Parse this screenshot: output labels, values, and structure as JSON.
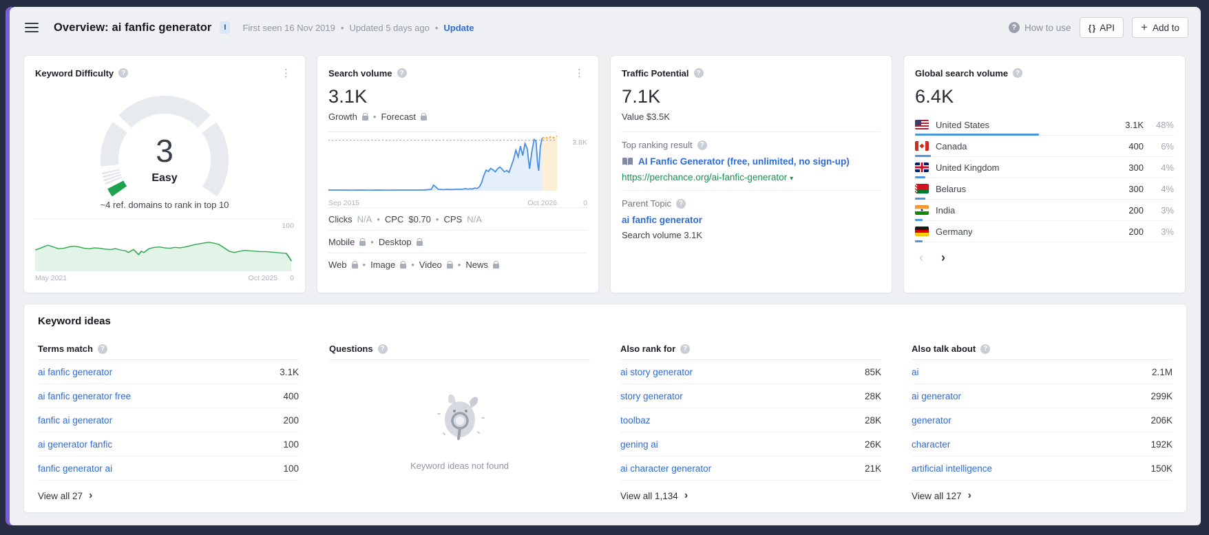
{
  "sep": "•",
  "topbar": {
    "title": "Overview: ai fanfic generator",
    "title_badge": "I",
    "first_seen": "First seen 16 Nov 2019",
    "updated": "Updated 5 days ago",
    "update_link": "Update",
    "how_to_use": "How to use",
    "api_label": "API",
    "add_to_label": "Add to"
  },
  "cards": {
    "kd": {
      "title": "Keyword Difficulty",
      "score": "3",
      "level": "Easy",
      "hint": "~4 ref. domains to rank in top 10",
      "history_axis": {
        "y_top": "100",
        "y_zero": "0",
        "x_start": "May 2021",
        "x_end": "Oct 2025"
      }
    },
    "search_volume": {
      "title": "Search volume",
      "value": "3.1K",
      "growth_label": "Growth",
      "forecast_label": "Forecast",
      "axis": {
        "y_top": "3.8K",
        "y_zero": "0",
        "x_start": "Sep 2015",
        "x_end": "Oct 2026"
      },
      "clicks_label": "Clicks",
      "clicks_value": "N/A",
      "cpc_label": "CPC",
      "cpc_value": "$0.70",
      "cps_label": "CPS",
      "cps_value": "N/A",
      "mobile_label": "Mobile",
      "desktop_label": "Desktop",
      "web_label": "Web",
      "image_label": "Image",
      "video_label": "Video",
      "news_label": "News"
    },
    "traffic_potential": {
      "title": "Traffic Potential",
      "value": "7.1K",
      "value_line": "Value $3.5K",
      "top_ranking_label": "Top ranking result",
      "top_result_title": "AI Fanfic Generator (free, unlimited, no sign-up)",
      "top_result_url": "https://perchance.org/ai-fanfic-generator",
      "parent_topic_label": "Parent Topic",
      "parent_topic": "ai fanfic generator",
      "parent_topic_volume": "Search volume 3.1K"
    },
    "global": {
      "title": "Global search volume",
      "value": "6.4K",
      "countries": [
        {
          "name": "United States",
          "flag": "us",
          "volume": "3.1K",
          "pct": "48%",
          "bar": 48
        },
        {
          "name": "Canada",
          "flag": "ca",
          "volume": "400",
          "pct": "6%",
          "bar": 6
        },
        {
          "name": "United Kingdom",
          "flag": "gb",
          "volume": "300",
          "pct": "4%",
          "bar": 4
        },
        {
          "name": "Belarus",
          "flag": "by",
          "volume": "300",
          "pct": "4%",
          "bar": 4
        },
        {
          "name": "India",
          "flag": "in",
          "volume": "200",
          "pct": "3%",
          "bar": 3
        },
        {
          "name": "Germany",
          "flag": "de",
          "volume": "200",
          "pct": "3%",
          "bar": 3
        }
      ],
      "pager_prev": "‹",
      "pager_next": "›"
    }
  },
  "keyword_ideas": {
    "title": "Keyword ideas",
    "terms_match": {
      "header": "Terms match",
      "rows": [
        {
          "kw": "ai fanfic generator",
          "vol": "3.1K"
        },
        {
          "kw": "ai fanfic generator free",
          "vol": "400"
        },
        {
          "kw": "fanfic ai generator",
          "vol": "200"
        },
        {
          "kw": "ai generator fanfic",
          "vol": "100"
        },
        {
          "kw": "fanfic generator ai",
          "vol": "100"
        }
      ],
      "view_all": "View all 27"
    },
    "questions": {
      "header": "Questions",
      "empty_text": "Keyword ideas not found"
    },
    "also_rank": {
      "header": "Also rank for",
      "rows": [
        {
          "kw": "ai story generator",
          "vol": "85K"
        },
        {
          "kw": "story generator",
          "vol": "28K"
        },
        {
          "kw": "toolbaz",
          "vol": "28K"
        },
        {
          "kw": "gening ai",
          "vol": "26K"
        },
        {
          "kw": "ai character generator",
          "vol": "21K"
        }
      ],
      "view_all": "View all 1,134"
    },
    "also_talk": {
      "header": "Also talk about",
      "rows": [
        {
          "kw": "ai",
          "vol": "2.1M"
        },
        {
          "kw": "ai generator",
          "vol": "299K"
        },
        {
          "kw": "generator",
          "vol": "206K"
        },
        {
          "kw": "character",
          "vol": "192K"
        },
        {
          "kw": "artificial intelligence",
          "vol": "150K"
        }
      ],
      "view_all": "View all 127"
    }
  },
  "chart_data": [
    {
      "id": "kd-gauge",
      "type": "gauge",
      "title": "Keyword Difficulty",
      "value": 3,
      "max": 100,
      "label": "Easy",
      "accent_color": "#1ea24d",
      "track_color": "#e7eaee"
    },
    {
      "id": "kd-history",
      "type": "area",
      "color": "#34a853",
      "fill_opacity": 0.14,
      "ymax": 100,
      "x_range": [
        "May 2021",
        "Oct 2025"
      ],
      "y_axis": [
        "0",
        "100"
      ],
      "points": [
        [
          0,
          50
        ],
        [
          2,
          54
        ],
        [
          4,
          59
        ],
        [
          5,
          61
        ],
        [
          7,
          57
        ],
        [
          9,
          53
        ],
        [
          11,
          54
        ],
        [
          13,
          57
        ],
        [
          15,
          59
        ],
        [
          17,
          57
        ],
        [
          19,
          54
        ],
        [
          21,
          53
        ],
        [
          23,
          55
        ],
        [
          25,
          54
        ],
        [
          27,
          52
        ],
        [
          29,
          51
        ],
        [
          31,
          53
        ],
        [
          33,
          50
        ],
        [
          35,
          48
        ],
        [
          36,
          44
        ],
        [
          38,
          51
        ],
        [
          40,
          39
        ],
        [
          41,
          47
        ],
        [
          42,
          44
        ],
        [
          44,
          53
        ],
        [
          46,
          56
        ],
        [
          48,
          57
        ],
        [
          50,
          55
        ],
        [
          52,
          54
        ],
        [
          54,
          56
        ],
        [
          56,
          55
        ],
        [
          58,
          57
        ],
        [
          60,
          60
        ],
        [
          62,
          63
        ],
        [
          64,
          65
        ],
        [
          66,
          67
        ],
        [
          67,
          68
        ],
        [
          69,
          66
        ],
        [
          71,
          63
        ],
        [
          73,
          55
        ],
        [
          75,
          47
        ],
        [
          77,
          44
        ],
        [
          79,
          47
        ],
        [
          81,
          49
        ],
        [
          83,
          48
        ],
        [
          85,
          47
        ],
        [
          87,
          46
        ],
        [
          89,
          46
        ],
        [
          91,
          45
        ],
        [
          93,
          44
        ],
        [
          95,
          43
        ],
        [
          97,
          42
        ],
        [
          98,
          34
        ],
        [
          99,
          24
        ]
      ]
    },
    {
      "id": "search-volume",
      "type": "line",
      "ymax": 4.4,
      "gridline": 3.8,
      "x_range": [
        "Sep 2015",
        "Oct 2026"
      ],
      "y_axis": [
        "0",
        "3.8K"
      ],
      "series": [
        {
          "name": "History",
          "color": "#4a90e2",
          "fill_opacity": 0.14,
          "points": [
            [
              0,
              0.05
            ],
            [
              5,
              0.05
            ],
            [
              10,
              0.04
            ],
            [
              14,
              0.05
            ],
            [
              18,
              0.04
            ],
            [
              22,
              0.05
            ],
            [
              26,
              0.04
            ],
            [
              30,
              0.05
            ],
            [
              34,
              0.05
            ],
            [
              38,
              0.05
            ],
            [
              42,
              0.06
            ],
            [
              45,
              0.1
            ],
            [
              46,
              0.42
            ],
            [
              47,
              0.28
            ],
            [
              48,
              0.12
            ],
            [
              50,
              0.08
            ],
            [
              52,
              0.1
            ],
            [
              54,
              0.09
            ],
            [
              56,
              0.12
            ],
            [
              58,
              0.1
            ],
            [
              60,
              0.16
            ],
            [
              61,
              0.12
            ],
            [
              62,
              0.15
            ],
            [
              63,
              0.13
            ],
            [
              64,
              0.2
            ],
            [
              65,
              0.17
            ],
            [
              66,
              0.28
            ],
            [
              67,
              0.6
            ],
            [
              68,
              1.15
            ],
            [
              69,
              1.55
            ],
            [
              70,
              1.45
            ],
            [
              71,
              1.68
            ],
            [
              72,
              1.58
            ],
            [
              73,
              1.42
            ],
            [
              74,
              1.66
            ],
            [
              75,
              1.78
            ],
            [
              76,
              1.62
            ],
            [
              77,
              1.42
            ],
            [
              78,
              1.52
            ],
            [
              79,
              1.38
            ],
            [
              80,
              1.85
            ],
            [
              81,
              2.35
            ],
            [
              82,
              3.05
            ],
            [
              83,
              2.55
            ],
            [
              84,
              3.35
            ],
            [
              85,
              2.65
            ],
            [
              86,
              3.55
            ],
            [
              87,
              3.15
            ],
            [
              88,
              1.65
            ],
            [
              89,
              2.95
            ],
            [
              90,
              3.85
            ],
            [
              90.8,
              3.75
            ],
            [
              91.5,
              2.1
            ],
            [
              92,
              1.5
            ],
            [
              92.7,
              3.3
            ],
            [
              93.5,
              3.95
            ]
          ]
        },
        {
          "name": "Forecast",
          "color": "#f5a623",
          "fill_opacity": 0.18,
          "dashed": true,
          "points": [
            [
              93.5,
              3.95
            ],
            [
              95,
              4.05
            ],
            [
              96.2,
              3.9
            ],
            [
              97.4,
              4.1
            ],
            [
              98.6,
              3.98
            ],
            [
              100,
              4.12
            ]
          ]
        }
      ]
    }
  ]
}
